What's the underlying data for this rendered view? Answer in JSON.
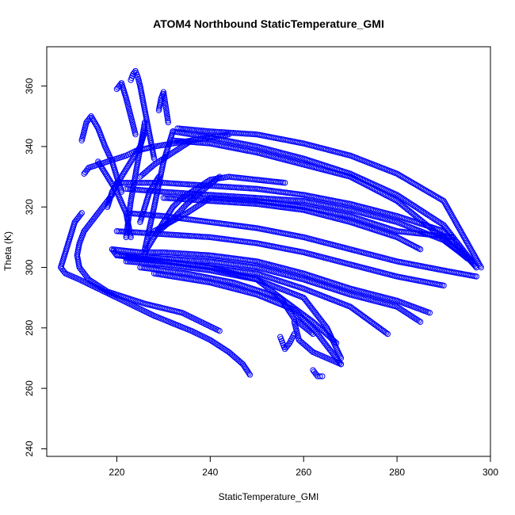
{
  "chart_data": {
    "type": "scatter",
    "title": "ATOM4 Northbound StaticTemperature_GMI",
    "xlabel": "StaticTemperature_GMI",
    "ylabel": "Theta (K)",
    "xlim": [
      205,
      300
    ],
    "ylim": [
      237.5,
      373
    ],
    "xticks": [
      "220",
      "240",
      "260",
      "280",
      "300"
    ],
    "yticks": [
      "240",
      "260",
      "280",
      "300",
      "320",
      "340",
      "360"
    ],
    "marker": "open-circle",
    "color": "#0000ff",
    "grid": false,
    "legend": "none",
    "series": [
      {
        "x": [
          248.5,
          247,
          244,
          240,
          236,
          232,
          228,
          224,
          220,
          216,
          212,
          209,
          208,
          209,
          210,
          211,
          212.5
        ],
        "y": [
          264.5,
          268,
          272,
          276,
          279,
          281.5,
          284,
          287,
          290,
          293,
          296,
          298,
          300,
          305,
          310,
          315,
          318
        ]
      },
      {
        "x": [
          242,
          238,
          234,
          230,
          226,
          222,
          218,
          214,
          212,
          211.5,
          212,
          213,
          215,
          217,
          219
        ],
        "y": [
          279,
          282,
          285,
          286.5,
          288,
          290,
          292,
          296,
          300,
          304,
          308,
          312,
          316,
          320,
          324
        ]
      },
      {
        "x": [
          213,
          213.5,
          214,
          216,
          218,
          220,
          222,
          224,
          228,
          232,
          236,
          240,
          244
        ],
        "y": [
          331,
          332,
          333,
          334,
          335,
          336,
          337,
          338.5,
          340,
          341,
          342,
          343,
          344
        ]
      },
      {
        "x": [
          212.5,
          213,
          213.5,
          214.5,
          216,
          217.5,
          219,
          220,
          221
        ],
        "y": [
          342,
          345,
          348,
          350,
          346,
          340,
          335,
          330,
          325
        ]
      },
      {
        "x": [
          223,
          223.5,
          224,
          224.5,
          225,
          225.5,
          226,
          226.5,
          227,
          227.5,
          228
        ],
        "y": [
          362,
          364,
          365,
          363,
          360,
          356,
          352,
          348,
          344,
          340,
          336
        ]
      },
      {
        "x": [
          220,
          221,
          222,
          223,
          224
        ],
        "y": [
          359,
          361,
          356,
          350,
          344
        ]
      },
      {
        "x": [
          229,
          229.5,
          230,
          230.5,
          231
        ],
        "y": [
          352,
          356,
          358,
          353,
          348
        ]
      },
      {
        "x": [
          233,
          240,
          250,
          260,
          270,
          280,
          290,
          298
        ],
        "y": [
          346,
          345,
          344,
          341,
          337,
          331,
          322,
          300
        ]
      },
      {
        "x": [
          232,
          240,
          250,
          260,
          270,
          280,
          290,
          297
        ],
        "y": [
          345,
          343,
          340,
          336,
          331,
          324,
          314,
          300
        ]
      },
      {
        "x": [
          232,
          240,
          250,
          260,
          270,
          280,
          288,
          295
        ],
        "y": [
          342,
          341,
          338,
          334,
          330,
          322,
          312,
          303
        ]
      },
      {
        "x": [
          220,
          230,
          240,
          250,
          260,
          270,
          280,
          290,
          297
        ],
        "y": [
          328,
          328,
          327,
          326,
          324,
          321,
          317,
          312,
          300
        ]
      },
      {
        "x": [
          222,
          230,
          240,
          250,
          260,
          270,
          280,
          290,
          296
        ],
        "y": [
          326,
          325,
          324,
          323,
          322,
          319,
          315,
          309,
          302
        ]
      },
      {
        "x": [
          230,
          240,
          250,
          260,
          270,
          280,
          285
        ],
        "y": [
          323,
          322,
          321,
          319,
          315,
          310,
          306
        ]
      },
      {
        "x": [
          228,
          235,
          240,
          250,
          260,
          270,
          280,
          292
        ],
        "y": [
          312,
          318,
          323,
          322,
          320,
          317,
          312,
          310
        ]
      },
      {
        "x": [
          222,
          230,
          240,
          250,
          260,
          270,
          280,
          290,
          297
        ],
        "y": [
          318,
          317,
          315,
          313,
          310,
          306,
          302,
          299,
          297
        ]
      },
      {
        "x": [
          220,
          230,
          240,
          250,
          260,
          270,
          280,
          290
        ],
        "y": [
          312,
          311,
          310,
          308,
          305,
          301,
          297,
          294
        ]
      },
      {
        "x": [
          219,
          225,
          230,
          240,
          250,
          260,
          270,
          280,
          287
        ],
        "y": [
          306,
          305,
          305,
          304,
          302,
          298,
          293,
          289,
          285
        ]
      },
      {
        "x": [
          220,
          230,
          240,
          250,
          260,
          270,
          280,
          285
        ],
        "y": [
          304,
          303,
          302,
          300,
          296,
          291,
          287,
          282
        ]
      },
      {
        "x": [
          222,
          230,
          240,
          250,
          260,
          270,
          278
        ],
        "y": [
          303,
          302,
          300,
          298,
          293,
          287,
          278
        ]
      },
      {
        "x": [
          222,
          230,
          240,
          250,
          260,
          265,
          268
        ],
        "y": [
          302,
          301,
          299,
          296,
          290,
          280,
          270
        ]
      },
      {
        "x": [
          220,
          230,
          240,
          250,
          255,
          258,
          262
        ],
        "y": [
          304,
          302,
          300,
          296,
          290,
          283,
          278
        ]
      },
      {
        "x": [
          225,
          235,
          245,
          255,
          262,
          267
        ],
        "y": [
          300,
          298,
          295,
          290,
          282,
          275
        ]
      },
      {
        "x": [
          228,
          240,
          250,
          258,
          263,
          268
        ],
        "y": [
          298,
          295,
          291,
          286,
          278,
          268
        ]
      },
      {
        "x": [
          258,
          259,
          262,
          265,
          268
        ],
        "y": [
          282,
          276,
          272,
          270,
          268
        ]
      },
      {
        "x": [
          262,
          262.5,
          263,
          264
        ],
        "y": [
          266,
          265,
          264,
          264
        ]
      },
      {
        "x": [
          226,
          228,
          230,
          232
        ],
        "y": [
          306,
          320,
          335,
          345
        ]
      },
      {
        "x": [
          222,
          223,
          224.5,
          226
        ],
        "y": [
          310,
          322,
          335,
          348
        ]
      },
      {
        "x": [
          218,
          219,
          221,
          223,
          225,
          226
        ],
        "y": [
          320,
          325,
          330,
          335,
          340,
          345
        ]
      },
      {
        "x": [
          216,
          218,
          220,
          222,
          223
        ],
        "y": [
          335,
          330,
          325,
          318,
          310
        ]
      },
      {
        "x": [
          226,
          228,
          230,
          232,
          234,
          236,
          238,
          240,
          244,
          250,
          256
        ],
        "y": [
          305,
          310,
          315,
          320,
          323,
          325,
          327,
          329,
          330,
          329,
          328
        ]
      },
      {
        "x": [
          229,
          232,
          235,
          238,
          242
        ],
        "y": [
          312,
          316,
          321,
          325,
          330
        ]
      },
      {
        "x": [
          225,
          228,
          231,
          234,
          236
        ],
        "y": [
          330,
          334,
          337,
          340,
          342
        ]
      },
      {
        "x": [
          225,
          227,
          229
        ],
        "y": [
          315,
          325,
          330
        ]
      },
      {
        "x": [
          219,
          219.5,
          220
        ],
        "y": [
          306,
          305,
          304
        ]
      },
      {
        "x": [
          255,
          255.5,
          256,
          257,
          258
        ],
        "y": [
          277,
          275,
          273,
          275,
          278
        ]
      }
    ]
  }
}
